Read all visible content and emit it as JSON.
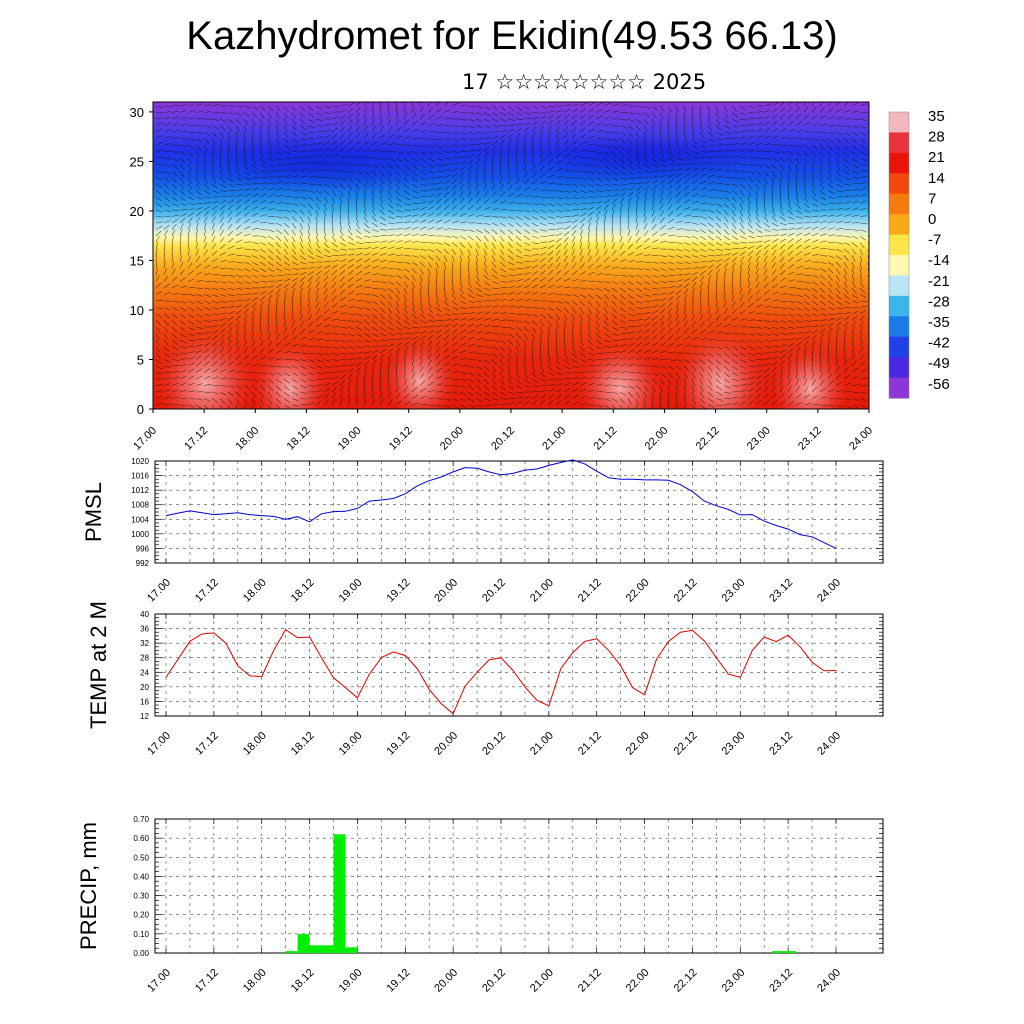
{
  "header": {
    "title": "Kazhydromet for Ekidin(49.53 66.13)",
    "date": "17 ☆☆☆☆☆☆☆☆ 2025"
  },
  "chart_data": [
    {
      "type": "heatmap",
      "title": "Kazhydromet for Ekidin(49.53 66.13)",
      "subtitle": "17 ☆☆☆☆☆☆☆☆ 2025",
      "x_ticks": [
        "17.00",
        "17.12",
        "18.00",
        "18.12",
        "19.00",
        "19.12",
        "20.00",
        "20.12",
        "21.00",
        "21.12",
        "22.00",
        "22.12",
        "23.00",
        "23.12",
        "24.00"
      ],
      "y_ticks": [
        0,
        5,
        10,
        15,
        20,
        25,
        30
      ],
      "ylim": [
        0,
        31
      ],
      "colorbar_labels": [
        "35",
        "28",
        "21",
        "14",
        "7",
        "0",
        "-7",
        "-14",
        "-21",
        "-28",
        "-35",
        "-42",
        "-49",
        "-56"
      ],
      "colorbar_colors": [
        "#f2b8bc",
        "#e8323c",
        "#e8140a",
        "#f04a0a",
        "#f57a10",
        "#fba818",
        "#fde64a",
        "#fef9b0",
        "#b8e4f4",
        "#3cb4ec",
        "#1a7ae8",
        "#2040e8",
        "#4a28e0",
        "#8a36d8"
      ],
      "profile_colors": [
        {
          "h": 0,
          "color": "#e61a0a"
        },
        {
          "h": 5,
          "color": "#e8260c"
        },
        {
          "h": 9,
          "color": "#ef4a0c"
        },
        {
          "h": 12,
          "color": "#f57a10"
        },
        {
          "h": 14.5,
          "color": "#fbab1c"
        },
        {
          "h": 16.5,
          "color": "#fde64a"
        },
        {
          "h": 17.3,
          "color": "#fef7b0"
        },
        {
          "h": 18.5,
          "color": "#b8e4f4"
        },
        {
          "h": 20,
          "color": "#3cb0ec"
        },
        {
          "h": 21.5,
          "color": "#1a80e8"
        },
        {
          "h": 23.5,
          "color": "#1450e8"
        },
        {
          "h": 26,
          "color": "#2030e8"
        },
        {
          "h": 28,
          "color": "#4a3ce8"
        },
        {
          "h": 31,
          "color": "#8a36d8"
        }
      ],
      "grid": false
    },
    {
      "type": "line",
      "ylabel": "PMSL",
      "ylim": [
        992,
        1020
      ],
      "y_ticks": [
        992,
        996,
        1000,
        1004,
        1008,
        1012,
        1016,
        1020
      ],
      "x_ticks": [
        "17.00",
        "17.12",
        "18.00",
        "18.12",
        "19.00",
        "19.12",
        "20.00",
        "20.12",
        "21.00",
        "21.12",
        "22.00",
        "22.12",
        "23.00",
        "23.12",
        "24.00"
      ],
      "series": [
        {
          "color": "#0000d0",
          "x": [
            0,
            3,
            6,
            9,
            12,
            15,
            18,
            21,
            24,
            27,
            30,
            33,
            36,
            39,
            42,
            45,
            48,
            51,
            54,
            57,
            60,
            63,
            66,
            69,
            72,
            75,
            78,
            81,
            84,
            87,
            90,
            93,
            96,
            99,
            102,
            105,
            108,
            111,
            114,
            117,
            120,
            123,
            126,
            129,
            132,
            135,
            138,
            141,
            144,
            147,
            150,
            153,
            156,
            159,
            162,
            165,
            168
          ],
          "values": [
            1005.0,
            1005.7,
            1006.3,
            1005.8,
            1005.3,
            1005.5,
            1005.8,
            1005.3,
            1005.0,
            1004.8,
            1004.0,
            1004.7,
            1003.3,
            1005.5,
            1006.1,
            1006.2,
            1007.0,
            1009.0,
            1009.3,
            1009.7,
            1011.0,
            1013.2,
            1014.6,
            1015.6,
            1017.0,
            1018.2,
            1018.0,
            1017.0,
            1016.2,
            1016.6,
            1017.5,
            1017.8,
            1018.8,
            1019.6,
            1020.3,
            1019.2,
            1017.2,
            1015.4,
            1015.0,
            1015.0,
            1014.8,
            1014.8,
            1014.7,
            1013.5,
            1011.6,
            1009.0,
            1007.7,
            1006.7,
            1005.2,
            1005.3,
            1003.5,
            1002.3,
            1001.3,
            999.8,
            999.2,
            997.6,
            996.0
          ]
        }
      ],
      "grid": true
    },
    {
      "type": "line",
      "ylabel": "TEMP at 2 M",
      "ylim": [
        12,
        40
      ],
      "y_ticks": [
        12,
        16,
        20,
        24,
        28,
        32,
        36,
        40
      ],
      "x_ticks": [
        "17.00",
        "17.12",
        "18.00",
        "18.12",
        "19.00",
        "19.12",
        "20.00",
        "20.12",
        "21.00",
        "21.12",
        "22.00",
        "22.12",
        "23.00",
        "23.12",
        "24.00"
      ],
      "series": [
        {
          "color": "#e00000",
          "x": [
            0,
            6,
            9,
            12,
            15,
            18,
            21,
            24,
            27,
            30,
            33,
            36,
            39,
            42,
            45,
            48,
            51,
            54,
            57,
            60,
            63,
            66,
            69,
            72,
            75,
            78,
            81,
            84,
            87,
            90,
            93,
            96,
            99,
            102,
            105,
            108,
            111,
            114,
            117,
            120,
            123,
            126,
            129,
            132,
            135,
            138,
            141,
            144,
            147,
            150,
            153,
            156,
            159,
            162,
            165,
            168
          ],
          "values": [
            22.6,
            32.5,
            34.5,
            34.8,
            32.0,
            25.8,
            23.0,
            22.8,
            30.0,
            35.7,
            33.5,
            33.7,
            28.0,
            22.5,
            19.8,
            17.0,
            23.5,
            28.0,
            29.6,
            28.6,
            25.0,
            19.3,
            15.4,
            12.6,
            20.2,
            24.0,
            27.4,
            28.0,
            24.5,
            20.0,
            16.3,
            14.8,
            25.0,
            29.4,
            32.5,
            33.2,
            30.0,
            25.8,
            19.8,
            17.8,
            27.6,
            32.5,
            35.0,
            35.5,
            32.6,
            28.0,
            23.5,
            22.6,
            30.0,
            33.7,
            32.4,
            34.2,
            31.0,
            26.8,
            24.4,
            24.5
          ]
        }
      ],
      "grid": true
    },
    {
      "type": "bar",
      "ylabel": "PRECIP, mm",
      "ylim": [
        0,
        0.7
      ],
      "y_ticks": [
        "0.00",
        "0.10",
        "0.20",
        "0.30",
        "0.40",
        "0.50",
        "0.60",
        "0.70"
      ],
      "x_ticks": [
        "17.00",
        "17.12",
        "18.00",
        "18.12",
        "19.00",
        "19.12",
        "20.00",
        "20.12",
        "21.00",
        "21.12",
        "22.00",
        "22.12",
        "23.00",
        "23.12",
        "24.00"
      ],
      "bar_width_hours": 3,
      "series": [
        {
          "color": "#00ee00",
          "x": [
            31.5,
            34.5,
            37.5,
            40.5,
            43.5,
            46.5,
            153.5,
            156.5
          ],
          "values": [
            0.01,
            0.1,
            0.04,
            0.04,
            0.62,
            0.03,
            0.01,
            0.01
          ]
        }
      ],
      "grid": true
    }
  ]
}
